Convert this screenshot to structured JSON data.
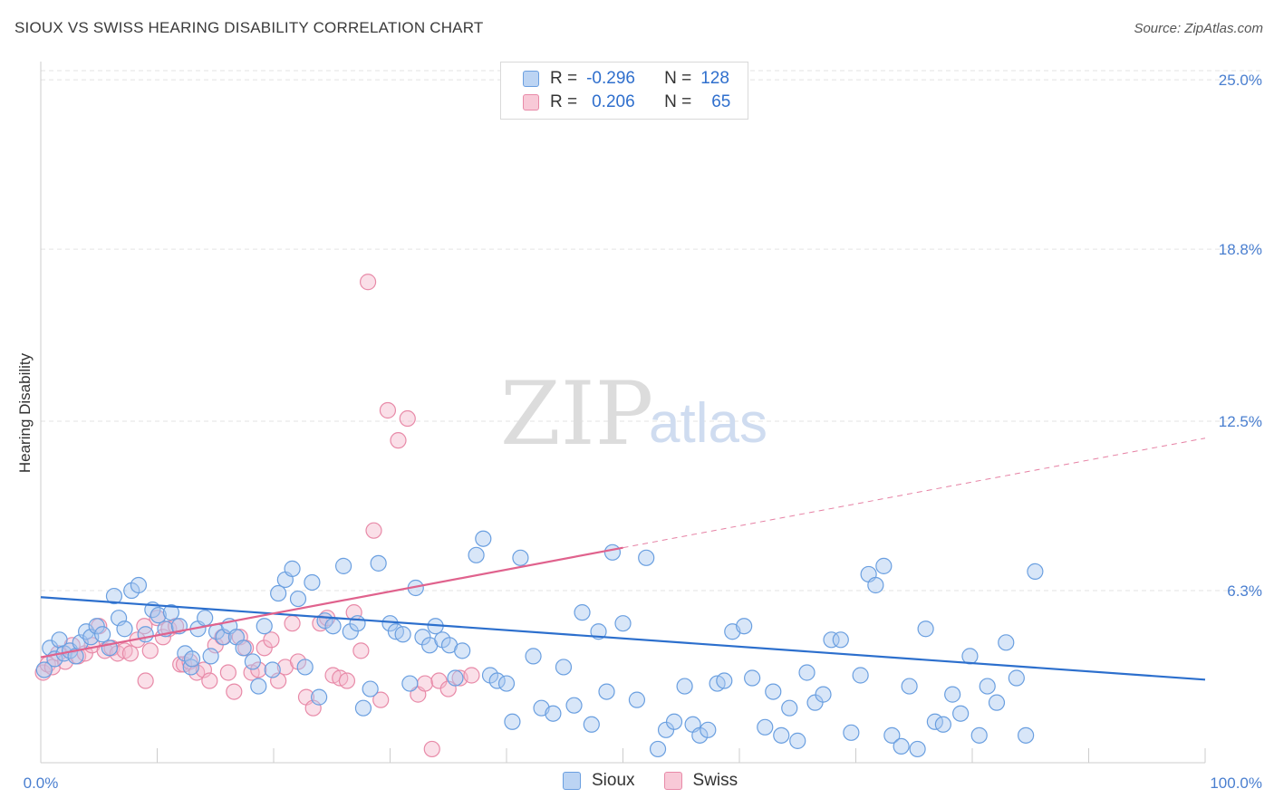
{
  "title": "SIOUX VS SWISS HEARING DISABILITY CORRELATION CHART",
  "source": "Source: ZipAtlas.com",
  "watermark": {
    "zip": "ZIP",
    "atlas": "atlas"
  },
  "legend": {
    "sioux": {
      "r_label": "R =",
      "r_value": "-0.296",
      "n_label": "N =",
      "n_value": "128"
    },
    "swiss": {
      "r_label": "R =",
      "r_value": "0.206",
      "n_label": "N =",
      "n_value": "65"
    }
  },
  "colors": {
    "sioux_fill": "#a9c8ef",
    "sioux_stroke": "#6a9fe0",
    "sioux_line": "#2c6fcd",
    "swiss_fill": "#f5b8cb",
    "swiss_stroke": "#e88aa8",
    "swiss_line": "#e0628d",
    "grid": "#e3e3e3",
    "tick_text": "#4a7fd0"
  },
  "chart_data": {
    "type": "scatter",
    "title": "SIOUX VS SWISS HEARING DISABILITY CORRELATION CHART",
    "xlabel": "",
    "ylabel": "Hearing Disability",
    "xlim": [
      0,
      100
    ],
    "ylim": [
      0,
      25.6
    ],
    "x_tick_labels": [
      "0.0%",
      "100.0%"
    ],
    "y_ticks": [
      6.3,
      12.5,
      18.8,
      25.0
    ],
    "y_tick_labels": [
      "6.3%",
      "12.5%",
      "18.8%",
      "25.0%"
    ],
    "grid": true,
    "legend_position": "bottom-center",
    "series": [
      {
        "name": "Sioux",
        "r": -0.296,
        "n": 128,
        "trend": {
          "x": [
            0,
            100
          ],
          "y": [
            6.06,
            3.04
          ]
        },
        "points": [
          [
            0.3,
            3.4
          ],
          [
            0.8,
            4.2
          ],
          [
            1.2,
            3.8
          ],
          [
            1.6,
            4.5
          ],
          [
            2.0,
            4.0
          ],
          [
            2.5,
            4.1
          ],
          [
            3.0,
            3.9
          ],
          [
            3.4,
            4.4
          ],
          [
            3.9,
            4.8
          ],
          [
            4.3,
            4.6
          ],
          [
            4.8,
            5.0
          ],
          [
            5.3,
            4.7
          ],
          [
            5.9,
            4.2
          ],
          [
            6.3,
            6.1
          ],
          [
            6.7,
            5.3
          ],
          [
            7.2,
            4.9
          ],
          [
            7.8,
            6.3
          ],
          [
            8.4,
            6.5
          ],
          [
            9.0,
            4.7
          ],
          [
            9.6,
            5.6
          ],
          [
            10.1,
            5.4
          ],
          [
            10.7,
            4.9
          ],
          [
            11.2,
            5.5
          ],
          [
            11.9,
            5.0
          ],
          [
            12.4,
            4.0
          ],
          [
            12.9,
            3.5
          ],
          [
            13.5,
            4.9
          ],
          [
            14.1,
            5.3
          ],
          [
            14.6,
            3.9
          ],
          [
            13.0,
            3.8
          ],
          [
            15.1,
            4.8
          ],
          [
            15.7,
            4.6
          ],
          [
            16.2,
            5.0
          ],
          [
            16.8,
            4.6
          ],
          [
            17.4,
            4.2
          ],
          [
            18.2,
            3.7
          ],
          [
            18.7,
            2.8
          ],
          [
            19.2,
            5.0
          ],
          [
            19.9,
            3.4
          ],
          [
            20.4,
            6.2
          ],
          [
            21.0,
            6.7
          ],
          [
            21.6,
            7.1
          ],
          [
            22.1,
            6.0
          ],
          [
            22.7,
            3.5
          ],
          [
            23.3,
            6.6
          ],
          [
            23.9,
            2.4
          ],
          [
            24.4,
            5.2
          ],
          [
            25.1,
            5.0
          ],
          [
            26.0,
            7.2
          ],
          [
            26.6,
            4.8
          ],
          [
            27.2,
            5.1
          ],
          [
            27.7,
            2.0
          ],
          [
            28.3,
            2.7
          ],
          [
            29.0,
            7.3
          ],
          [
            30.0,
            5.1
          ],
          [
            30.5,
            4.8
          ],
          [
            31.1,
            4.7
          ],
          [
            31.7,
            2.9
          ],
          [
            32.2,
            6.4
          ],
          [
            32.8,
            4.6
          ],
          [
            33.4,
            4.3
          ],
          [
            33.9,
            5.0
          ],
          [
            34.5,
            4.5
          ],
          [
            35.1,
            4.3
          ],
          [
            35.6,
            3.1
          ],
          [
            36.2,
            4.1
          ],
          [
            37.4,
            7.6
          ],
          [
            38.0,
            8.2
          ],
          [
            38.6,
            3.2
          ],
          [
            39.2,
            3.0
          ],
          [
            40.0,
            2.9
          ],
          [
            40.5,
            1.5
          ],
          [
            41.2,
            7.5
          ],
          [
            42.3,
            3.9
          ],
          [
            43.0,
            2.0
          ],
          [
            44.0,
            1.8
          ],
          [
            44.9,
            3.5
          ],
          [
            45.8,
            2.1
          ],
          [
            46.5,
            5.5
          ],
          [
            47.3,
            1.4
          ],
          [
            47.9,
            4.8
          ],
          [
            48.6,
            2.6
          ],
          [
            49.1,
            7.7
          ],
          [
            50.0,
            5.1
          ],
          [
            51.2,
            2.3
          ],
          [
            52.0,
            7.5
          ],
          [
            53.0,
            0.5
          ],
          [
            53.7,
            1.2
          ],
          [
            54.4,
            1.5
          ],
          [
            55.3,
            2.8
          ],
          [
            56.0,
            1.4
          ],
          [
            56.6,
            1.0
          ],
          [
            57.3,
            1.2
          ],
          [
            58.1,
            2.9
          ],
          [
            58.7,
            3.0
          ],
          [
            59.4,
            4.8
          ],
          [
            60.4,
            5.0
          ],
          [
            61.1,
            3.1
          ],
          [
            62.2,
            1.3
          ],
          [
            62.9,
            2.6
          ],
          [
            63.6,
            1.0
          ],
          [
            64.3,
            2.0
          ],
          [
            65.0,
            0.8
          ],
          [
            65.8,
            3.3
          ],
          [
            66.5,
            2.2
          ],
          [
            67.2,
            2.5
          ],
          [
            67.9,
            4.5
          ],
          [
            68.7,
            4.5
          ],
          [
            69.6,
            1.1
          ],
          [
            70.4,
            3.2
          ],
          [
            71.1,
            6.9
          ],
          [
            71.7,
            6.5
          ],
          [
            72.4,
            7.2
          ],
          [
            73.1,
            1.0
          ],
          [
            73.9,
            0.6
          ],
          [
            74.6,
            2.8
          ],
          [
            75.3,
            0.5
          ],
          [
            76.0,
            4.9
          ],
          [
            76.8,
            1.5
          ],
          [
            77.5,
            1.4
          ],
          [
            78.3,
            2.5
          ],
          [
            79.0,
            1.8
          ],
          [
            79.8,
            3.9
          ],
          [
            80.6,
            1.0
          ],
          [
            81.3,
            2.8
          ],
          [
            82.1,
            2.2
          ],
          [
            82.9,
            4.4
          ],
          [
            83.8,
            3.1
          ],
          [
            84.6,
            1.0
          ],
          [
            85.4,
            7.0
          ]
        ]
      },
      {
        "name": "Swiss",
        "r": 0.206,
        "n": 65,
        "trend_solid": {
          "x": [
            0,
            50
          ],
          "y": [
            3.86,
            7.87
          ]
        },
        "trend_dashed": {
          "x": [
            50,
            100
          ],
          "y": [
            7.87,
            11.88
          ]
        },
        "points": [
          [
            0.2,
            3.3
          ],
          [
            0.6,
            3.6
          ],
          [
            1.0,
            3.5
          ],
          [
            1.5,
            4.0
          ],
          [
            2.1,
            3.7
          ],
          [
            2.7,
            4.3
          ],
          [
            3.2,
            3.9
          ],
          [
            3.8,
            4.0
          ],
          [
            4.4,
            4.3
          ],
          [
            5.0,
            5.0
          ],
          [
            5.5,
            4.1
          ],
          [
            6.1,
            4.2
          ],
          [
            6.6,
            4.0
          ],
          [
            7.2,
            4.1
          ],
          [
            7.7,
            4.0
          ],
          [
            8.3,
            4.5
          ],
          [
            8.9,
            5.0
          ],
          [
            9.4,
            4.1
          ],
          [
            9.0,
            3.0
          ],
          [
            10.0,
            5.3
          ],
          [
            10.5,
            4.6
          ],
          [
            11.0,
            4.9
          ],
          [
            11.6,
            5.0
          ],
          [
            12.0,
            3.6
          ],
          [
            12.3,
            3.6
          ],
          [
            12.8,
            3.7
          ],
          [
            13.4,
            3.3
          ],
          [
            14.0,
            3.4
          ],
          [
            14.5,
            3.0
          ],
          [
            15.0,
            4.3
          ],
          [
            15.6,
            4.6
          ],
          [
            16.1,
            3.3
          ],
          [
            16.6,
            2.6
          ],
          [
            17.1,
            4.6
          ],
          [
            17.6,
            4.2
          ],
          [
            18.1,
            3.3
          ],
          [
            18.7,
            3.4
          ],
          [
            19.2,
            4.2
          ],
          [
            19.8,
            4.5
          ],
          [
            20.4,
            3.0
          ],
          [
            21.0,
            3.5
          ],
          [
            21.6,
            5.1
          ],
          [
            22.1,
            3.7
          ],
          [
            22.8,
            2.4
          ],
          [
            23.4,
            2.0
          ],
          [
            24.0,
            5.1
          ],
          [
            24.6,
            5.3
          ],
          [
            25.1,
            3.2
          ],
          [
            25.7,
            3.1
          ],
          [
            26.3,
            3.0
          ],
          [
            26.9,
            5.5
          ],
          [
            27.5,
            4.1
          ],
          [
            28.1,
            17.6
          ],
          [
            28.6,
            8.5
          ],
          [
            29.2,
            2.3
          ],
          [
            29.8,
            12.9
          ],
          [
            30.7,
            11.8
          ],
          [
            31.5,
            12.6
          ],
          [
            32.4,
            2.5
          ],
          [
            33.0,
            2.9
          ],
          [
            33.6,
            0.5
          ],
          [
            34.2,
            3.0
          ],
          [
            35.0,
            2.7
          ],
          [
            36.0,
            3.1
          ],
          [
            37.0,
            3.2
          ]
        ]
      }
    ]
  }
}
